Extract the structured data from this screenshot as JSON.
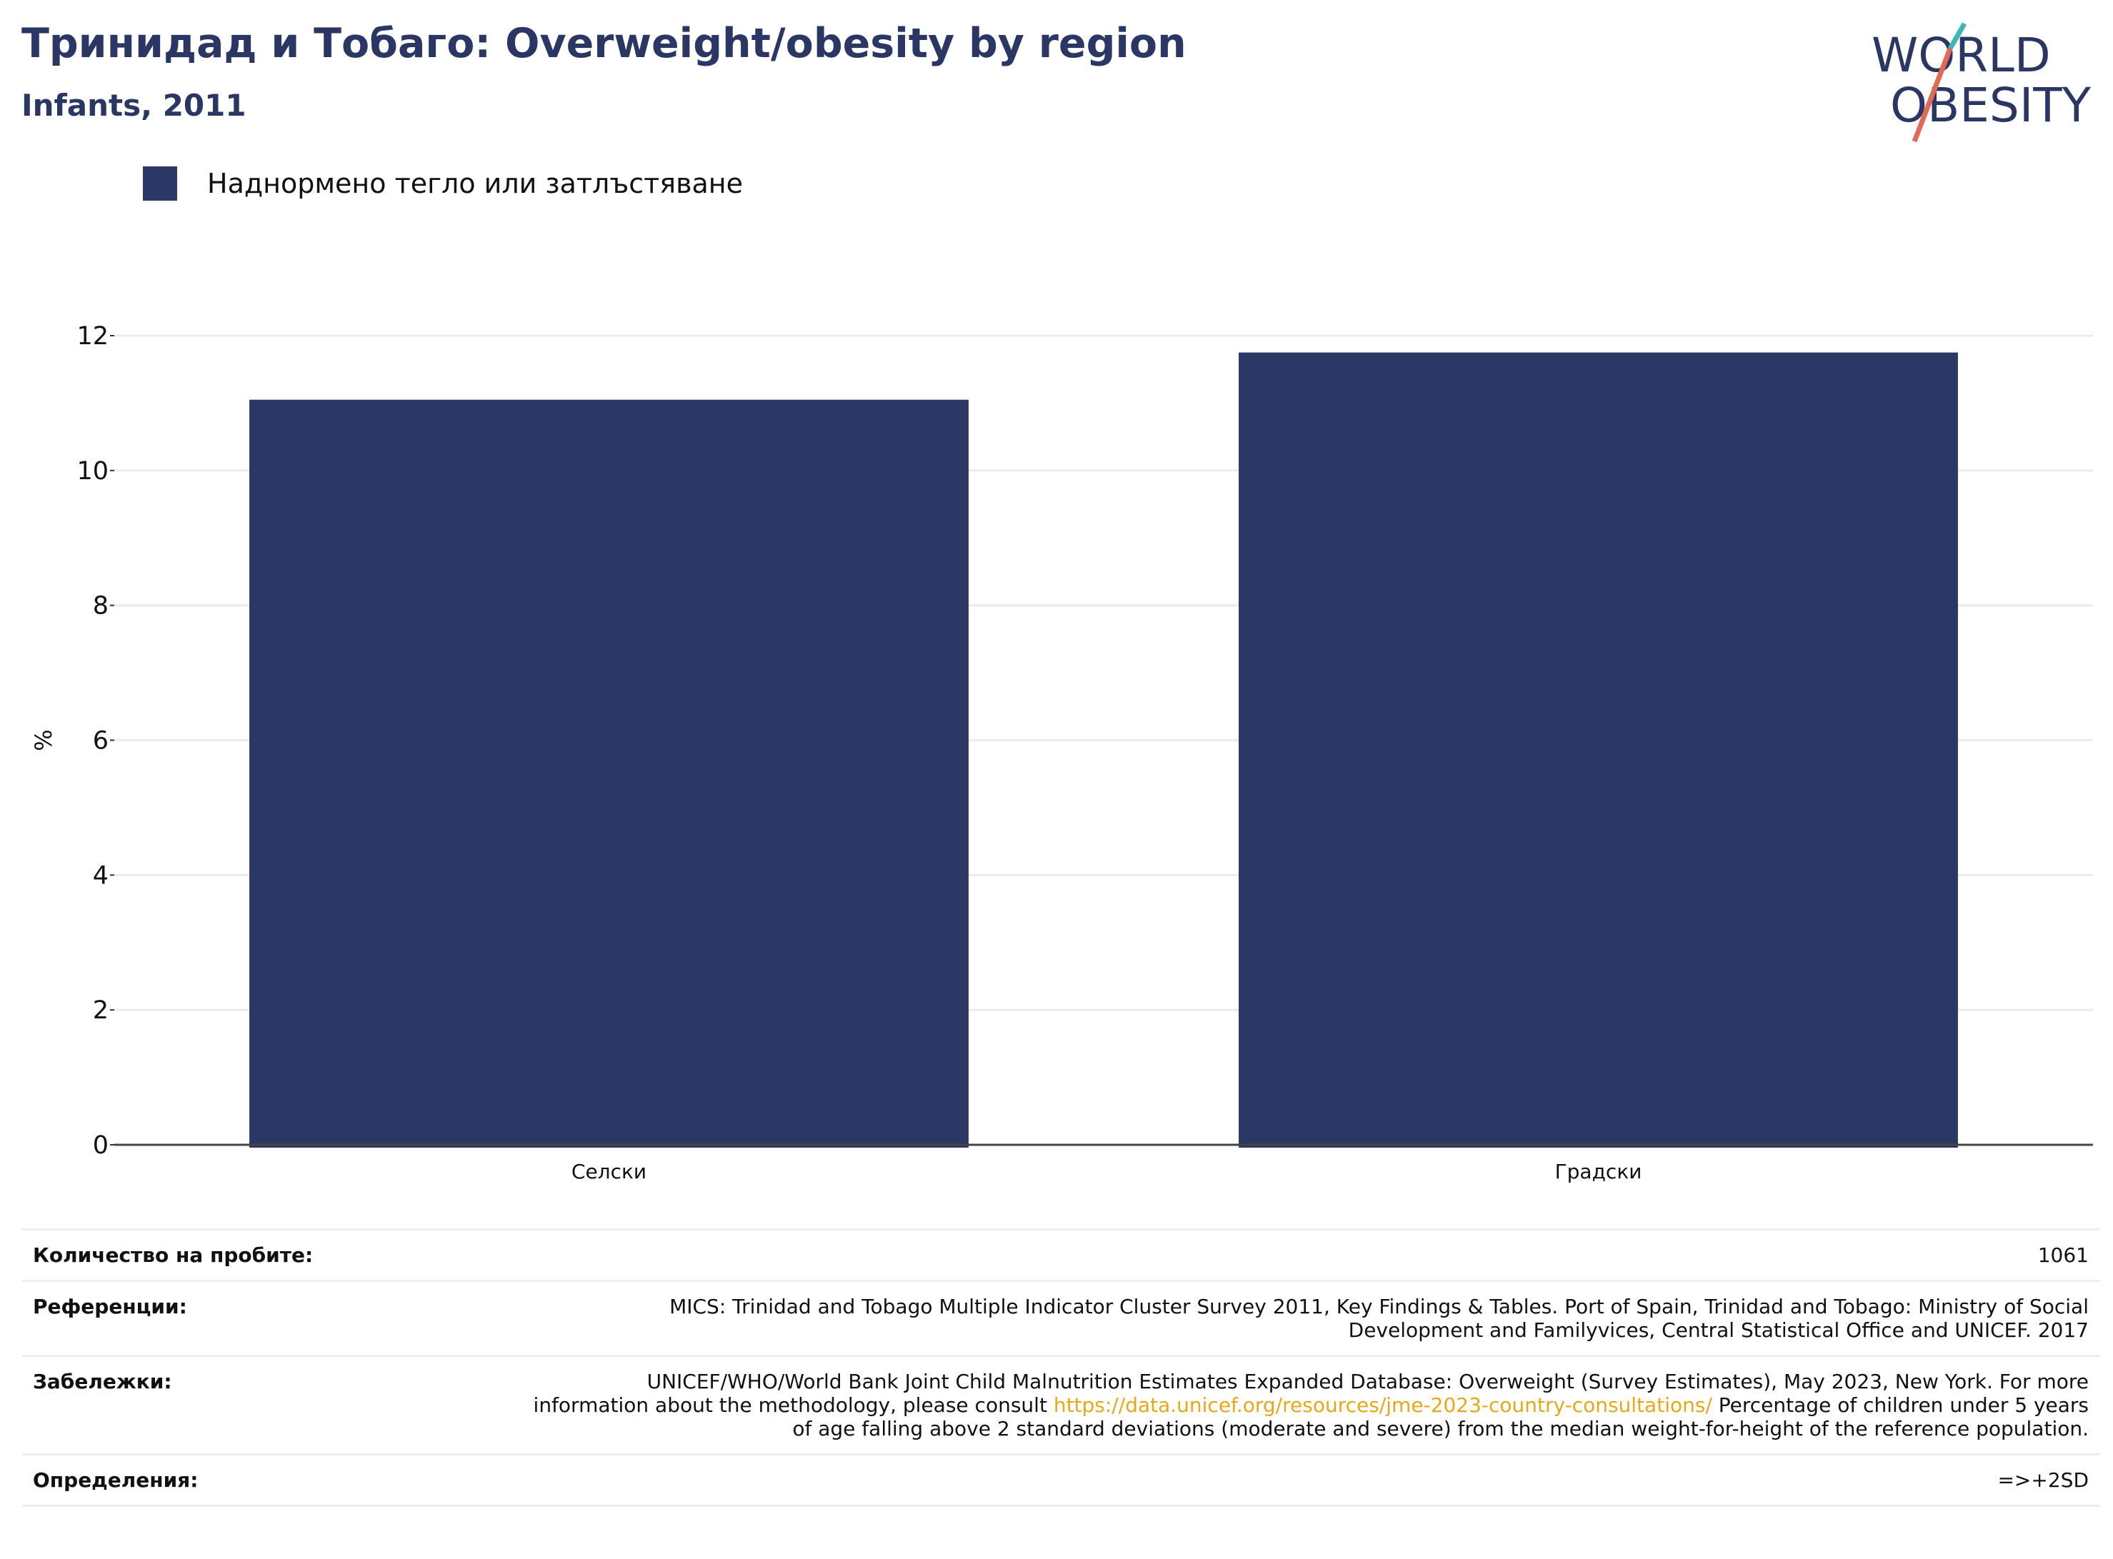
{
  "header": {
    "title": "Тринидад и Тобаго: Overweight/obesity by region",
    "subtitle": "Infants, 2011"
  },
  "logo": {
    "line1": "WORLD",
    "line2": "OBESITY",
    "name": "world-obesity-logo"
  },
  "legend": {
    "label": "Наднормено тегло или затлъстяване",
    "color": "#2b3764"
  },
  "chart_data": {
    "type": "bar",
    "categories": [
      "Селски",
      "Градски"
    ],
    "series": [
      {
        "name": "Наднормено тегло или затлъстяване",
        "values": [
          11.05,
          11.75
        ]
      }
    ],
    "ylabel": "%",
    "ylim": [
      0,
      12
    ],
    "yticks": [
      0,
      2,
      4,
      6,
      8,
      10,
      12
    ],
    "grid": true,
    "legend_position": "top-left",
    "bar_color": "#2b3764"
  },
  "info": {
    "sample_label": "Количество на пробите:",
    "sample_value": "1061",
    "references_label": "Референции:",
    "references_value": "MICS: Trinidad and Tobago Multiple Indicator Cluster Survey 2011, Key Findings & Tables. Port of Spain, Trinidad and Tobago: Ministry of Social Development and Familyvices, Central Statistical Office and UNICEF. 2017",
    "notes_label": "Забележки:",
    "notes_before": "UNICEF/WHO/World Bank Joint Child Malnutrition Estimates Expanded Database: Overweight (Survey Estimates), May 2023, New York. For more information about the methodology, please consult ",
    "notes_link": "https://data.unicef.org/resources/jme-2023-country-consultations/",
    "notes_after": " Percentage of children under 5 years of age falling above 2 standard deviations (moderate and severe) from the median weight-for-height of the reference population.",
    "definitions_label": "Определения:",
    "definitions_value": "=>+2SD"
  }
}
